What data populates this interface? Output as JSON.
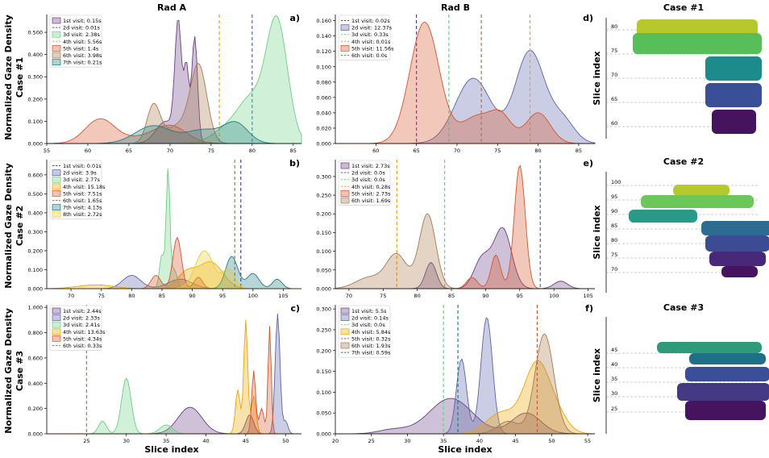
{
  "headers": {
    "rad_a": "Rad A",
    "rad_b": "Rad B",
    "case1": "Case #1",
    "case2": "Case #2",
    "case3": "Case #3",
    "row1_label": "Case #1",
    "row2_label": "Case #2",
    "row3_label": "Case #3"
  },
  "shared_labels": {
    "ylabel": "Normalized Gaze Density",
    "xlabel_a": "Slice index",
    "xlabel_b": "Slice index",
    "brain_ylabel": "Slice index"
  },
  "colors": {
    "v1": "#6b3d82",
    "v2": "#5b63a8",
    "v3": "#6ccf82",
    "v4": "#f0a500",
    "v5": "#d6542a",
    "v6": "#a8794f",
    "v7": "#1e7d82",
    "v8": "#e8cc30"
  },
  "chart_data": [
    {
      "panel": "a)",
      "type": "area",
      "rad": "Rad A",
      "case": "Case #1",
      "xlim": [
        55,
        86
      ],
      "ylim": [
        0,
        0.58
      ],
      "xticks": [
        "55",
        "60",
        "65",
        "70",
        "75",
        "80",
        "85"
      ],
      "yticks": [
        "0.000",
        "0.100",
        "0.200",
        "0.300",
        "0.400",
        "0.500"
      ],
      "legend": [
        "1st visit: 0.15s",
        "2d visit: 0.01s",
        "3d visit: 2.38s",
        "4th visit: 5.56s",
        "5th visit: 1.4s",
        "6th visit: 3.98s",
        "7th visit: 0.21s"
      ],
      "series": [
        {
          "name": "1st visit: 0.15s",
          "color": "v1",
          "dashed": false,
          "peaks": [
            [
              71,
              0.52,
              0.4
            ],
            [
              72,
              0.33,
              0.3
            ],
            [
              73,
              0.48,
              0.35
            ],
            [
              69.5,
              0.1,
              1.2
            ]
          ]
        },
        {
          "name": "2d visit: 0.01s",
          "color": "v2",
          "dashed": true,
          "vline": 80
        },
        {
          "name": "3d visit: 2.38s",
          "color": "v3",
          "dashed": false,
          "peaks": [
            [
              83,
              0.55,
              1.3
            ],
            [
              80,
              0.16,
              1.5
            ],
            [
              77.5,
              0.08,
              2
            ]
          ]
        },
        {
          "name": "4th visit: 5.56s",
          "color": "v4",
          "dashed": true,
          "vline": 76
        },
        {
          "name": "5th visit: 1.4s",
          "color": "v5",
          "dashed": false,
          "peaks": [
            [
              61.5,
              0.11,
              1.8
            ],
            [
              70,
              0.08,
              2
            ],
            [
              66,
              0.02,
              2
            ]
          ]
        },
        {
          "name": "6th visit: 3.98s",
          "color": "v6",
          "dashed": false,
          "peaks": [
            [
              68,
              0.17,
              0.8
            ],
            [
              73.5,
              0.34,
              1
            ],
            [
              71,
              0.08,
              1.5
            ]
          ]
        },
        {
          "name": "7th visit: 0.21s",
          "color": "v7",
          "dashed": false,
          "peaks": [
            [
              68,
              0.08,
              2.2
            ],
            [
              78,
              0.09,
              1.5
            ],
            [
              74,
              0.06,
              2
            ]
          ]
        }
      ]
    },
    {
      "panel": "d)",
      "type": "area",
      "rad": "Rad B",
      "case": "Case #1",
      "xlim": [
        55,
        87
      ],
      "ylim": [
        0,
        0.168
      ],
      "xticks": [
        "60",
        "65",
        "70",
        "75",
        "80",
        "85"
      ],
      "yticks": [
        "0.000",
        "0.020",
        "0.040",
        "0.060",
        "0.080",
        "0.100",
        "0.120",
        "0.140",
        "0.160"
      ],
      "legend": [
        "1st visit: 0.02s",
        "2d visit: 12.37s",
        "3d visit: 0.33s",
        "4th visit: 0.01s",
        "5th visit: 11.56s",
        "6th visit: 0.0s"
      ],
      "series": [
        {
          "name": "1st visit: 0.02s",
          "color": "v1",
          "dashed": true,
          "vline": 65
        },
        {
          "name": "2d visit: 12.37s",
          "color": "v2",
          "dashed": false,
          "peaks": [
            [
              79,
              0.12,
              1.8
            ],
            [
              72,
              0.085,
              2.2
            ],
            [
              83,
              0.03,
              1.5
            ]
          ]
        },
        {
          "name": "3d visit: 0.33s",
          "color": "v3",
          "dashed": true,
          "vline": 69
        },
        {
          "name": "4th visit: 0.01s",
          "color": "v4",
          "dashed": true,
          "vline": 79
        },
        {
          "name": "5th visit: 11.56s",
          "color": "v5",
          "dashed": false,
          "peaks": [
            [
              66,
              0.158,
              1.8
            ],
            [
              72.5,
              0.035,
              2
            ],
            [
              80,
              0.04,
              1.5
            ],
            [
              75.5,
              0.03,
              1.3
            ]
          ]
        },
        {
          "name": "6th visit: 0.0s",
          "color": "v6",
          "dashed": true,
          "vline": 73
        }
      ]
    },
    {
      "panel": "b)",
      "type": "area",
      "rad": "Rad A",
      "case": "Case #2",
      "xlim": [
        66,
        108
      ],
      "ylim": [
        0,
        0.68
      ],
      "xticks": [
        "70",
        "75",
        "80",
        "85",
        "90",
        "95",
        "100",
        "105"
      ],
      "yticks": [
        "0.000",
        "0.100",
        "0.200",
        "0.300",
        "0.400",
        "0.500",
        "0.600"
      ],
      "legend": [
        "1st visit: 0.01s",
        "2d visit: 3.9s",
        "3d visit: 2.77s",
        "4th visit: 15.18s",
        "5th visit: 7.51s",
        "6th visit: 1.65s",
        "7th visit: 4.13s",
        "8th visit: 2.72s"
      ],
      "series": [
        {
          "name": "1st visit: 0.01s",
          "color": "v1",
          "dashed": true,
          "vline": 98
        },
        {
          "name": "2d visit: 3.9s",
          "color": "v2",
          "dashed": false,
          "peaks": [
            [
              80,
              0.07,
              1.5
            ],
            [
              88,
              0.05,
              2
            ]
          ]
        },
        {
          "name": "3d visit: 2.77s",
          "color": "v3",
          "dashed": false,
          "peaks": [
            [
              86,
              0.62,
              0.3
            ],
            [
              85,
              0.18,
              0.4
            ],
            [
              87,
              0.1,
              0.5
            ]
          ]
        },
        {
          "name": "4th visit: 15.18s",
          "color": "v4",
          "dashed": false,
          "peaks": [
            [
              93,
              0.14,
              2
            ],
            [
              89,
              0.08,
              1.5
            ],
            [
              74,
              0.02,
              3
            ]
          ]
        },
        {
          "name": "5th visit: 7.51s",
          "color": "v5",
          "dashed": false,
          "peaks": [
            [
              87.5,
              0.27,
              0.7
            ],
            [
              84,
              0.07,
              0.8
            ],
            [
              91,
              0.06,
              0.7
            ]
          ]
        },
        {
          "name": "6th visit: 1.65s",
          "color": "v6",
          "dashed": true,
          "vline": 97
        },
        {
          "name": "7th visit: 4.13s",
          "color": "v7",
          "dashed": false,
          "peaks": [
            [
              96.5,
              0.17,
              1
            ],
            [
              104,
              0.05,
              0.8
            ],
            [
              100,
              0.08,
              1
            ]
          ]
        },
        {
          "name": "8th visit: 2.72s",
          "color": "v8",
          "dashed": false,
          "peaks": [
            [
              92,
              0.2,
              1.5
            ],
            [
              96,
              0.1,
              1
            ]
          ]
        }
      ]
    },
    {
      "panel": "e)",
      "type": "area",
      "rad": "Rad B",
      "case": "Case #2",
      "xlim": [
        68,
        106
      ],
      "ylim": [
        0,
        0.345
      ],
      "xticks": [
        "70",
        "75",
        "80",
        "85",
        "90",
        "95",
        "100",
        "105"
      ],
      "yticks": [
        "0.000",
        "0.050",
        "0.100",
        "0.150",
        "0.200",
        "0.250",
        "0.300"
      ],
      "legend": [
        "1st visit: 2.73s",
        "2d visit: 0.0s",
        "3d visit: 0.0s",
        "4th visit: 0.28s",
        "5th visit: 2.73s",
        "6th visit: 1.69s"
      ],
      "series": [
        {
          "name": "1st visit: 2.73s",
          "color": "v1",
          "dashed": false,
          "peaks": [
            [
              92.5,
              0.16,
              1.3
            ],
            [
              89.5,
              0.08,
              1.2
            ],
            [
              82,
              0.07,
              0.8
            ],
            [
              101,
              0.02,
              1
            ]
          ]
        },
        {
          "name": "2d visit: 0.0s",
          "color": "v2",
          "dashed": true,
          "vline": 98
        },
        {
          "name": "3d visit: 0.0s",
          "color": "v3",
          "dashed": true,
          "vline": 84
        },
        {
          "name": "4th visit: 0.28s",
          "color": "v4",
          "dashed": true,
          "vline": 77
        },
        {
          "name": "5th visit: 2.73s",
          "color": "v5",
          "dashed": false,
          "peaks": [
            [
              95,
              0.33,
              0.8
            ],
            [
              91.5,
              0.09,
              0.7
            ],
            [
              88,
              0.03,
              0.8
            ]
          ]
        },
        {
          "name": "6th visit: 1.69s",
          "color": "v6",
          "dashed": false,
          "peaks": [
            [
              81.5,
              0.2,
              1.2
            ],
            [
              77,
              0.09,
              1.5
            ],
            [
              73,
              0.03,
              2
            ]
          ]
        }
      ]
    },
    {
      "panel": "c)",
      "type": "area",
      "rad": "Rad A",
      "case": "Case #3",
      "xlim": [
        20,
        52
      ],
      "ylim": [
        0,
        1.02
      ],
      "xticks": [
        "25",
        "30",
        "35",
        "40",
        "45",
        "50"
      ],
      "yticks": [
        "0.000",
        "0.200",
        "0.400",
        "0.600",
        "0.800",
        "1.000"
      ],
      "legend": [
        "1st visit: 2.44s",
        "2d visit: 2.33s",
        "3d visit: 2.41s",
        "4th visit: 13.63s",
        "5th visit: 4.34s",
        "6th visit: 0.33s"
      ],
      "series": [
        {
          "name": "1st visit: 2.44s",
          "color": "v1",
          "dashed": false,
          "peaks": [
            [
              38,
              0.21,
              1.5
            ],
            [
              45.5,
              0.15,
              0.5
            ]
          ]
        },
        {
          "name": "2d visit: 2.33s",
          "color": "v2",
          "dashed": false,
          "peaks": [
            [
              49,
              0.95,
              0.3
            ],
            [
              50,
              0.1,
              0.3
            ]
          ]
        },
        {
          "name": "3d visit: 2.41s",
          "color": "v3",
          "dashed": false,
          "peaks": [
            [
              30,
              0.44,
              0.6
            ],
            [
              27,
              0.1,
              0.5
            ],
            [
              35,
              0.07,
              0.8
            ]
          ]
        },
        {
          "name": "4th visit: 13.63s",
          "color": "v4",
          "dashed": false,
          "peaks": [
            [
              45,
              0.9,
              0.25
            ],
            [
              44,
              0.35,
              0.3
            ],
            [
              46,
              0.3,
              0.3
            ]
          ]
        },
        {
          "name": "5th visit: 4.34s",
          "color": "v5",
          "dashed": false,
          "peaks": [
            [
              48,
              0.85,
              0.2
            ],
            [
              46,
              0.5,
              0.25
            ],
            [
              47,
              0.2,
              0.3
            ]
          ]
        },
        {
          "name": "6th visit: 0.33s",
          "color": "v6",
          "dashed": true,
          "vline": 25
        }
      ]
    },
    {
      "panel": "f)",
      "type": "area",
      "rad": "Rad B",
      "case": "Case #3",
      "xlim": [
        20,
        56
      ],
      "ylim": [
        0,
        0.31
      ],
      "xticks": [
        "20",
        "25",
        "30",
        "35",
        "40",
        "45",
        "50",
        "55"
      ],
      "yticks": [
        "0.000",
        "0.050",
        "0.100",
        "0.150",
        "0.200",
        "0.250",
        "0.300"
      ],
      "legend": [
        "1st visit: 5.5s",
        "2d visit: 0.14s",
        "3d visit: 0.0s",
        "4th visit: 5.84s",
        "5th visit: 0.32s",
        "6th visit: 1.93s",
        "7th visit: 0.59s"
      ],
      "series": [
        {
          "name": "1st visit: 5.5s",
          "color": "v1",
          "dashed": false,
          "peaks": [
            [
              36,
              0.085,
              3
            ],
            [
              46.5,
              0.05,
              2
            ],
            [
              28,
              0.01,
              2
            ]
          ]
        },
        {
          "name": "2d visit: 0.14s",
          "color": "v2",
          "dashed": false,
          "peaks": [
            [
              41,
              0.28,
              0.8
            ],
            [
              37.5,
              0.18,
              0.7
            ]
          ]
        },
        {
          "name": "3d visit: 0.0s",
          "color": "v3",
          "dashed": true,
          "vline": 35
        },
        {
          "name": "4th visit: 5.84s",
          "color": "v4",
          "dashed": false,
          "peaks": [
            [
              48,
              0.17,
              1.8
            ],
            [
              43,
              0.05,
              2
            ],
            [
              51,
              0.03,
              1.5
            ]
          ]
        },
        {
          "name": "5th visit: 0.32s",
          "color": "v5",
          "dashed": true,
          "vline": 48
        },
        {
          "name": "6th visit: 1.93s",
          "color": "v6",
          "dashed": false,
          "peaks": [
            [
              49,
              0.24,
              1.3
            ],
            [
              44,
              0.03,
              1.5
            ]
          ]
        },
        {
          "name": "7th visit: 0.59s",
          "color": "v7",
          "dashed": true,
          "vline": 37
        }
      ]
    }
  ],
  "brains": [
    {
      "case": "Case #1",
      "ticks": [
        "80",
        "75",
        "70",
        "65",
        "60"
      ],
      "bands": [
        "#b7c92a",
        "#58be5a",
        "#1d8a8c",
        "#3b4f98",
        "#46135f"
      ]
    },
    {
      "case": "Case #2",
      "ticks": [
        "100",
        "95",
        "90",
        "85",
        "80",
        "75",
        "70"
      ],
      "bands": [
        "#b7c92a",
        "#6cc75a",
        "#2a9a88",
        "#2c6c90",
        "#3c4c94",
        "#482878",
        "#46135f"
      ]
    },
    {
      "case": "Case #3",
      "ticks": [
        "45",
        "40",
        "35",
        "30",
        "25"
      ],
      "bands": [
        "#2f9a7a",
        "#1f6f88",
        "#3b4f98",
        "#433a83",
        "#46135f"
      ]
    }
  ]
}
